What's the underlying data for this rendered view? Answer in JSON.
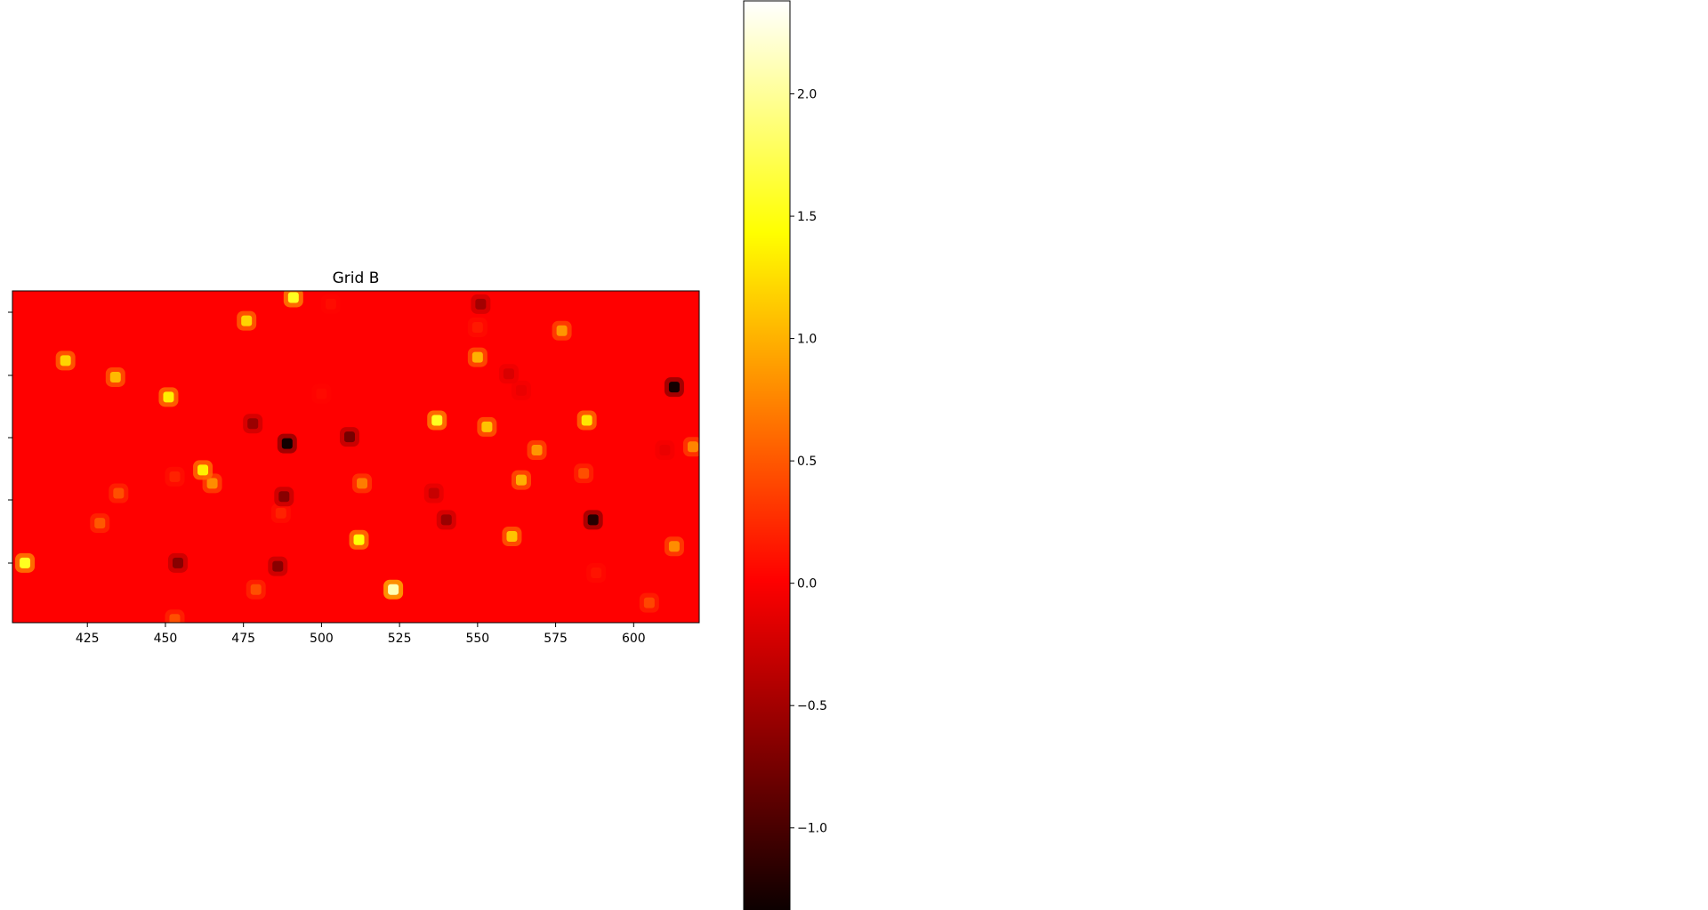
{
  "chart_data": {
    "type": "heatmap",
    "title": "Grid B",
    "colormap": "hot",
    "xlabel": "",
    "ylabel": "",
    "xlim": [
      401,
      621
    ],
    "x_ticks": [
      "425",
      "450",
      "475",
      "500",
      "525",
      "550",
      "575",
      "600"
    ],
    "x_tick_values": [
      425,
      450,
      475,
      500,
      525,
      550,
      575,
      600
    ],
    "ylim": [
      0,
      1
    ],
    "background_value": 0.0,
    "colorbar": {
      "range": [
        -1.35,
        2.38
      ],
      "ticks": [
        "2.0",
        "1.5",
        "1.0",
        "0.5",
        "0.0",
        "−0.5",
        "−1.0"
      ],
      "tick_values": [
        2.0,
        1.5,
        1.0,
        0.5,
        0.0,
        -0.5,
        -1.0
      ]
    },
    "peaks": [
      {
        "x": 491,
        "y": 0.98,
        "v": 1.55
      },
      {
        "x": 551,
        "y": 0.96,
        "v": -0.5
      },
      {
        "x": 476,
        "y": 0.91,
        "v": 1.2
      },
      {
        "x": 577,
        "y": 0.88,
        "v": 0.85
      },
      {
        "x": 550,
        "y": 0.89,
        "v": 0.15
      },
      {
        "x": 503,
        "y": 0.96,
        "v": 0.08
      },
      {
        "x": 418,
        "y": 0.79,
        "v": 1.2
      },
      {
        "x": 550,
        "y": 0.8,
        "v": 1.0
      },
      {
        "x": 434,
        "y": 0.74,
        "v": 1.05
      },
      {
        "x": 560,
        "y": 0.75,
        "v": -0.2
      },
      {
        "x": 564,
        "y": 0.7,
        "v": -0.1
      },
      {
        "x": 613,
        "y": 0.71,
        "v": -1.3
      },
      {
        "x": 451,
        "y": 0.68,
        "v": 1.35
      },
      {
        "x": 500,
        "y": 0.69,
        "v": 0.06
      },
      {
        "x": 478,
        "y": 0.6,
        "v": -0.55
      },
      {
        "x": 537,
        "y": 0.61,
        "v": 1.55
      },
      {
        "x": 553,
        "y": 0.59,
        "v": 1.1
      },
      {
        "x": 585,
        "y": 0.61,
        "v": 1.3
      },
      {
        "x": 489,
        "y": 0.54,
        "v": -1.3
      },
      {
        "x": 509,
        "y": 0.56,
        "v": -0.75
      },
      {
        "x": 569,
        "y": 0.52,
        "v": 0.85
      },
      {
        "x": 619,
        "y": 0.53,
        "v": 0.75
      },
      {
        "x": 610,
        "y": 0.52,
        "v": -0.1
      },
      {
        "x": 462,
        "y": 0.46,
        "v": 1.35
      },
      {
        "x": 465,
        "y": 0.42,
        "v": 0.8
      },
      {
        "x": 453,
        "y": 0.44,
        "v": 0.2
      },
      {
        "x": 513,
        "y": 0.42,
        "v": 0.7
      },
      {
        "x": 564,
        "y": 0.43,
        "v": 1.0
      },
      {
        "x": 584,
        "y": 0.45,
        "v": 0.45
      },
      {
        "x": 435,
        "y": 0.39,
        "v": 0.45
      },
      {
        "x": 488,
        "y": 0.38,
        "v": -0.65
      },
      {
        "x": 536,
        "y": 0.39,
        "v": -0.3
      },
      {
        "x": 487,
        "y": 0.33,
        "v": 0.2
      },
      {
        "x": 429,
        "y": 0.3,
        "v": 0.5
      },
      {
        "x": 540,
        "y": 0.31,
        "v": -0.55
      },
      {
        "x": 587,
        "y": 0.31,
        "v": -1.2
      },
      {
        "x": 512,
        "y": 0.25,
        "v": 1.45
      },
      {
        "x": 561,
        "y": 0.26,
        "v": 1.1
      },
      {
        "x": 613,
        "y": 0.23,
        "v": 0.8
      },
      {
        "x": 405,
        "y": 0.18,
        "v": 1.55
      },
      {
        "x": 454,
        "y": 0.18,
        "v": -0.65
      },
      {
        "x": 486,
        "y": 0.17,
        "v": -0.65
      },
      {
        "x": 588,
        "y": 0.15,
        "v": 0.12
      },
      {
        "x": 479,
        "y": 0.1,
        "v": 0.45
      },
      {
        "x": 523,
        "y": 0.1,
        "v": 2.1
      },
      {
        "x": 605,
        "y": 0.06,
        "v": 0.4
      },
      {
        "x": 453,
        "y": 0.01,
        "v": 0.45
      }
    ]
  }
}
